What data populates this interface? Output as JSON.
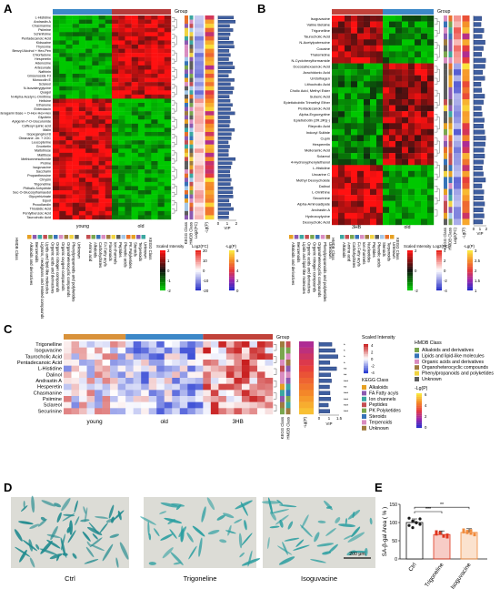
{
  "panels": [
    {
      "id": "A",
      "label": "A"
    },
    {
      "id": "B",
      "label": "B"
    },
    {
      "id": "C",
      "label": "C"
    },
    {
      "id": "D",
      "label": "D"
    },
    {
      "id": "E",
      "label": "E"
    }
  ],
  "colors": {
    "young": "#d9923a",
    "old": "#3c88c8",
    "hb3": "#c1423a",
    "heat_low": "#00b000",
    "heat_mid": "#111111",
    "heat_high": "#ff1111",
    "fc_neg": "#2b33c8",
    "fc_pos": "#e8241c"
  },
  "heatmapA": {
    "group_title": "Group",
    "group_labels": [
      "young",
      "old"
    ],
    "rows": [
      "L-Histidine",
      "Andrastin A",
      "Chasmanine",
      "Psiimine",
      "Schinifoline",
      "Pentadecanoic Acid",
      "Kidsuaine",
      "Thyroxine",
      "Benzyl Alcohol + Hex-Pen",
      "Chlorfadone",
      "Hesperetin",
      "Adenosine",
      "Artesunate",
      "Nafhinin",
      "Ginsenoside F3",
      "Monocolin E",
      "Sclareol",
      "N-Isovaleryglycine",
      "Quagol",
      "N-Alpha-Acetyl-L-Ornithine",
      "Helisine",
      "Ethanone",
      "Enterolacin",
      "Heteraganin Base + O-Hex-Hex-Hex",
      "Glycitein",
      "Apigenin-7-O-Glucuronide",
      "Caffeoyl quinic acid",
      "Malin",
      "Isopeganginol B",
      "Oleanane -4rr. + 2OC",
      "Leucopterine",
      "Gnorbetin",
      "Maltotriose",
      "Maltitose",
      "Methionmesulfoxide",
      "Proline",
      "Isoguvacine",
      "Saccharin",
      "Propantheosine",
      "Chrysin",
      "Trigonelline",
      "Phthalic Anhydride",
      "Sec-O-Glucosylhamaudol",
      "Glycyrrhizinate",
      "Equol",
      "Procollandin",
      "Thioisidic Acid",
      "Pentylbenzoic Acid",
      "Taurocholic Acid"
    ],
    "side_axis_labels": [
      "KEGG Class",
      "HMDB Class",
      "Log2(FC)",
      "-Lg(P)"
    ],
    "vip_label": "VIP",
    "vip_ticks": [
      "0",
      "1",
      "2"
    ],
    "legend": {
      "hmdb_title": "HMDB Class",
      "hmdb_items": [
        "Alkaloids and derivatives",
        "Benzenoids",
        "Lignans, neolignans and related compounds",
        "Lipids and lipid-like molecules",
        "Organic acids and derivatives",
        "Organic nitrogen compounds",
        "Organic oxygen compounds",
        "Organoheterocyclic compounds",
        "Phenylpropanoids and polyketides",
        "Unknown"
      ],
      "kegg_title": "KEGG Class",
      "kegg_items": [
        "Amino acid",
        "Alkaloids",
        "Carbohydrates",
        "FA Fatty acyls",
        "Flavonoids",
        "Ion channels",
        "Peptides",
        "Phenolic acids",
        "PK Polyketides",
        "Steroids",
        "Terpenoids",
        "Unknown"
      ],
      "intensity_title": "Scaled Intensity",
      "intensity_ticks": [
        "2",
        "1",
        "0",
        "-1",
        "-2"
      ],
      "fc_title": "Log2(FC)",
      "fc_ticks": [
        "20",
        "10",
        "0",
        "-10",
        "-20"
      ],
      "p_title": "-Lg(P)",
      "p_ticks": [
        "8",
        "6",
        "4",
        "2",
        "0"
      ]
    }
  },
  "heatmapB": {
    "group_title": "Group",
    "group_labels": [
      "3HB",
      "old"
    ],
    "rows": [
      "Isoguvacine",
      "Valine Betaine",
      "Trigonelline",
      "Taurocholic Acid",
      "N-Acetylputrescine",
      "Cocaine",
      "Thalomidine",
      "N-Cyclohexylformamide",
      "Docosahexaenoic Acid",
      "Arachidonic Acid",
      "Uridolhagen",
      "Lithocholic Acid",
      "Cholic Acid, Methyl Ester",
      "Suberic Acid",
      "Epietiobobtin Trimethyl Ether",
      "Pentadecanoic Acid",
      "Alpha-Ergocryptine",
      "Epietiobotin (2R,3R)(-)",
      "Rieyrolic Acid",
      "Indoxyl Sulfate",
      "Cupin",
      "Hesperetin",
      "Melleramic Acid",
      "Sclareol",
      "4-Hydroxyphenylethanol",
      "L-Histidine",
      "Uncarine C",
      "Methyl Deoxycholate",
      "Dalinol",
      "L-Ornithine",
      "Securinine",
      "Alpha-Aminoadipate",
      "Andrastin A",
      "Hydroxoylycine",
      "Deoxycholic Acid"
    ],
    "side_axis_labels": [
      "KEGG Class",
      "HMDB Class",
      "Log2(FC)",
      "-Lg(P)"
    ],
    "vip_label": "VIP",
    "vip_ticks": [
      "0",
      "1",
      "2"
    ],
    "legend": {
      "hmdb_title": "HMDB Class",
      "hmdb_items": [
        "Alkaloids and derivatives",
        "Benzenoids",
        "Lipids and lipid-like molecules",
        "Organic acids and derivatives",
        "Organic nitrogen compounds",
        "Organoheterocyclic compounds",
        "Phenylpropanoids and polyketides",
        "Unknown"
      ],
      "kegg_title": "KEGG Class",
      "kegg_items": [
        "Alkaloids",
        "Amino acid",
        "Carbohydrates",
        "FA Fatty acyls",
        "Ion channels",
        "Nucleotides",
        "Peptides",
        "Phenolic acids",
        "Steroids",
        "Terpenoids",
        "Unknown"
      ],
      "intensity_title": "Scaled Intensity",
      "intensity_ticks": [
        "2",
        "0",
        "-2"
      ],
      "fc_title": "Log2(FC)",
      "fc_ticks": [
        "4",
        "2",
        "0",
        "-2",
        "-4"
      ],
      "p_title": "-Lg(P)",
      "p_ticks": [
        "3",
        "2.5",
        "2",
        "1.5",
        "1"
      ]
    }
  },
  "heatmapC": {
    "group_title": "Group",
    "group_labels": [
      "young",
      "old",
      "3HB"
    ],
    "rows": [
      "Trigonelline",
      "Isoguvacine",
      "Taurocholic Acid",
      "Pentadecanoic Acid",
      "L-Histidine",
      "Dalinol",
      "Andrastin A",
      "Hesperetin",
      "Chasmanine",
      "Psiimine",
      "Sclareol",
      "Securinine"
    ],
    "stars": [
      "*",
      "*",
      "*",
      "*",
      "**",
      "**",
      "***",
      "**",
      "***",
      "***",
      "***",
      "***"
    ],
    "side_axis_labels": [
      "KEGG Class",
      "HMDB Class",
      "-Lg(P)"
    ],
    "vip_label": "VIP",
    "vip_ticks": [
      "0",
      "1",
      "1.5"
    ],
    "legend": {
      "intensity_title": "Scaled Intensity",
      "intensity_ticks": [
        "4",
        "2",
        "0",
        "-2",
        "-4"
      ],
      "kegg_title": "KEGG Class",
      "kegg_items": [
        "Alkaloids",
        "FA Fatty acyls",
        "Ion channels",
        "Peptides",
        "PK Polyketides",
        "Steroids",
        "Terpenoids",
        "Unknown"
      ],
      "hmdb_title": "HMDB Class",
      "hmdb_items": [
        "Alkaloids and derivatives",
        "Lipids and lipid-like molecules",
        "Organic acids and derivatives",
        "Organoheterocyclic compounds",
        "Phenylpropanoids and polyketides",
        "Unknown"
      ],
      "p_title": "-Lg(P)",
      "p_ticks": [
        "6",
        "4",
        "2",
        "0"
      ]
    }
  },
  "micrographs": {
    "captions": [
      "Ctrl",
      "Trigoneline",
      "Isoguvacine"
    ],
    "scale_bar": "200 μm"
  },
  "chart_data": {
    "type": "bar",
    "categories": [
      "Ctrl",
      "Trigoneline",
      "Isoguvacine"
    ],
    "values": [
      100,
      67,
      73
    ],
    "points": [
      [
        112,
        104,
        99,
        95,
        92,
        86,
        100,
        110
      ],
      [
        75,
        70,
        64,
        60,
        68,
        72,
        62,
        66
      ],
      [
        80,
        76,
        70,
        68,
        74,
        72,
        78,
        66
      ]
    ],
    "colors": [
      "#ffffff",
      "#e0341c",
      "#f08a3a"
    ],
    "point_colors": [
      "#1a1a1a",
      "#e0341c",
      "#f08a3a"
    ],
    "ylabel": "SA-β-gal Area ( % )",
    "ylim": [
      0,
      150
    ],
    "yticks": [
      "0",
      "50",
      "100",
      "150"
    ],
    "significance": [
      "***",
      "**"
    ]
  }
}
